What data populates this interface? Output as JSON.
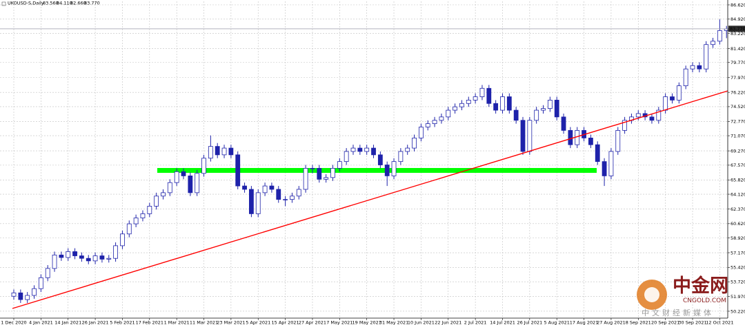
{
  "chart_data": {
    "type": "candlestick",
    "title": "UKOUSD-S,Daily",
    "header_values": [
      {
        "value": 83.56,
        "label": "83.560"
      },
      {
        "value": 84.11,
        "label": "84.110"
      },
      {
        "value": 82.66,
        "label": "82.660"
      },
      {
        "value": 83.77,
        "label": "83.770"
      }
    ],
    "price_line": {
      "value": 83.77,
      "label": "83.770"
    },
    "up_color": "#ffffff",
    "down_color": "#1e22aa",
    "wick_color": "#1e22aa",
    "grid": true,
    "ylim": [
      49.4,
      87.03
    ],
    "yticks": [
      {
        "value": 86.62,
        "label": "86.620"
      },
      {
        "value": 84.92,
        "label": "84.920"
      },
      {
        "value": 83.22,
        "label": "83.220"
      },
      {
        "value": 81.42,
        "label": "81.420"
      },
      {
        "value": 79.77,
        "label": "79.770"
      },
      {
        "value": 77.97,
        "label": "77.970"
      },
      {
        "value": 76.22,
        "label": "76.220"
      },
      {
        "value": 74.52,
        "label": "74.520"
      },
      {
        "value": 72.77,
        "label": "72.770"
      },
      {
        "value": 71.07,
        "label": "71.070"
      },
      {
        "value": 69.27,
        "label": "69.270"
      },
      {
        "value": 67.57,
        "label": "67.570"
      },
      {
        "value": 65.82,
        "label": "65.820"
      },
      {
        "value": 64.12,
        "label": "64.120"
      },
      {
        "value": 62.37,
        "label": "62.370"
      },
      {
        "value": 60.62,
        "label": "60.620"
      },
      {
        "value": 58.92,
        "label": "58.920"
      },
      {
        "value": 57.17,
        "label": "57.170"
      },
      {
        "value": 55.42,
        "label": "55.420"
      },
      {
        "value": 53.72,
        "label": "53.720"
      },
      {
        "value": 51.97,
        "label": "51.970"
      },
      {
        "value": 50.22,
        "label": "50.220"
      }
    ],
    "categories": [
      "1 Dec 2020",
      null,
      null,
      null,
      "4 Jan 2021",
      null,
      null,
      null,
      "14 Jan 2021",
      null,
      null,
      null,
      "26 Jan 2021",
      null,
      null,
      null,
      "5 Feb 2021",
      null,
      null,
      null,
      "17 Feb 2021",
      null,
      null,
      null,
      "1 Mar 2021",
      null,
      null,
      null,
      "11 Mar 2021",
      null,
      null,
      null,
      "23 Mar 2021",
      null,
      null,
      null,
      "5 Apr 2021",
      null,
      null,
      null,
      "15 Apr 2021",
      null,
      null,
      null,
      "27 Apr 2021",
      null,
      null,
      null,
      "7 May 2021",
      null,
      null,
      null,
      "19 May 2021",
      null,
      null,
      null,
      "31 May 2021",
      null,
      null,
      null,
      "10 Jun 2021",
      null,
      null,
      null,
      "22 Jun 2021",
      null,
      null,
      null,
      "2 Jul 2021",
      null,
      null,
      null,
      "14 Jul 2021",
      null,
      null,
      null,
      "26 Jul 2021",
      null,
      null,
      null,
      "5 Aug 2021",
      null,
      null,
      null,
      "17 Aug 2021",
      null,
      null,
      null,
      "27 Aug 2021",
      null,
      null,
      null,
      "8 Sep 2021",
      null,
      null,
      null,
      "20 Sep 2021",
      null,
      null,
      null,
      "30 Sep 2021",
      null,
      null,
      null,
      "12 Oct 2021",
      null
    ],
    "open": [
      52.0,
      52.4,
      51.6,
      52.1,
      52.9,
      54.2,
      55.3,
      56.9,
      56.6,
      57.3,
      56.8,
      56.5,
      56.2,
      56.8,
      56.4,
      56.5,
      58.0,
      59.4,
      60.6,
      61.3,
      61.8,
      62.7,
      63.9,
      64.3,
      65.5,
      66.8,
      66.3,
      64.3,
      66.6,
      68.4,
      69.8,
      68.8,
      69.6,
      68.8,
      65.1,
      64.7,
      61.8,
      64.3,
      65.1,
      64.7,
      63.5,
      63.5,
      63.9,
      64.7,
      67.2,
      67.2,
      65.9,
      66.1,
      67.2,
      68.0,
      69.2,
      69.6,
      69.2,
      69.6,
      68.8,
      67.6,
      66.3,
      68.0,
      69.2,
      69.6,
      70.8,
      72.1,
      72.5,
      72.9,
      73.3,
      74.1,
      74.5,
      74.9,
      75.3,
      75.7,
      76.7,
      74.9,
      74.1,
      75.7,
      74.1,
      72.9,
      69.2,
      72.9,
      74.1,
      74.3,
      75.3,
      73.3,
      71.7,
      70.0,
      71.7,
      70.8,
      70.0,
      68.0,
      66.3,
      69.2,
      71.7,
      72.9,
      73.3,
      73.7,
      73.3,
      72.9,
      74.1,
      75.7,
      75.3,
      77.0,
      79.0,
      79.4,
      79.0,
      81.9,
      82.3,
      83.56
    ],
    "high": [
      52.8,
      52.8,
      52.5,
      53.3,
      54.6,
      55.7,
      57.3,
      57.3,
      57.7,
      57.7,
      57.2,
      56.9,
      57.2,
      57.2,
      56.9,
      58.4,
      59.8,
      61.0,
      61.7,
      62.2,
      63.1,
      64.3,
      64.7,
      65.9,
      67.2,
      67.2,
      66.7,
      67.0,
      68.8,
      71.1,
      70.2,
      70.0,
      70.0,
      69.2,
      65.5,
      65.1,
      64.7,
      65.5,
      65.5,
      65.1,
      63.9,
      64.3,
      65.1,
      67.6,
      67.6,
      67.6,
      66.5,
      67.6,
      68.4,
      69.6,
      70.0,
      70.0,
      70.0,
      70.0,
      69.2,
      68.0,
      68.4,
      69.6,
      70.0,
      71.2,
      72.5,
      72.9,
      73.3,
      73.7,
      74.5,
      74.9,
      75.3,
      75.7,
      76.1,
      77.1,
      77.1,
      75.3,
      76.1,
      76.1,
      74.5,
      73.3,
      73.3,
      74.5,
      74.7,
      75.7,
      75.7,
      73.7,
      72.1,
      72.1,
      72.1,
      71.2,
      70.4,
      68.4,
      69.6,
      72.1,
      73.3,
      73.7,
      74.1,
      74.1,
      73.7,
      74.5,
      76.1,
      76.1,
      77.4,
      79.4,
      79.8,
      79.8,
      82.3,
      82.7,
      84.9,
      84.11
    ],
    "low": [
      51.6,
      51.2,
      51.2,
      51.7,
      52.5,
      53.8,
      54.9,
      56.2,
      56.2,
      56.4,
      56.1,
      55.8,
      55.8,
      56.0,
      56.0,
      56.1,
      57.6,
      59.0,
      60.2,
      60.9,
      61.4,
      62.3,
      63.5,
      63.9,
      65.1,
      65.9,
      63.9,
      63.9,
      66.2,
      68.0,
      68.4,
      68.4,
      68.4,
      64.7,
      64.3,
      61.4,
      61.4,
      63.9,
      64.3,
      63.1,
      62.7,
      63.1,
      63.5,
      64.3,
      66.6,
      65.5,
      65.5,
      65.7,
      66.8,
      67.6,
      68.8,
      68.8,
      68.8,
      68.4,
      67.2,
      65.1,
      65.9,
      67.6,
      68.8,
      69.2,
      70.4,
      71.7,
      72.1,
      72.5,
      72.9,
      73.7,
      74.1,
      74.5,
      74.9,
      75.3,
      74.5,
      73.7,
      73.7,
      73.7,
      72.5,
      68.8,
      68.8,
      72.5,
      73.7,
      73.9,
      72.9,
      71.3,
      69.6,
      69.6,
      70.4,
      69.6,
      67.6,
      65.1,
      65.9,
      68.8,
      71.3,
      72.5,
      72.9,
      72.9,
      72.5,
      72.5,
      73.7,
      74.9,
      74.9,
      76.6,
      78.6,
      78.6,
      78.6,
      81.5,
      81.9,
      82.66
    ],
    "close": [
      52.4,
      51.6,
      52.1,
      52.9,
      54.2,
      55.3,
      56.9,
      56.6,
      57.3,
      56.8,
      56.5,
      56.2,
      56.8,
      56.4,
      56.5,
      58.0,
      59.4,
      60.6,
      61.3,
      61.8,
      62.7,
      63.9,
      64.3,
      65.5,
      66.8,
      66.3,
      64.3,
      66.6,
      68.4,
      69.8,
      68.8,
      69.6,
      68.8,
      65.1,
      64.7,
      61.8,
      64.3,
      65.1,
      64.7,
      63.5,
      63.5,
      63.9,
      64.7,
      67.2,
      67.2,
      65.9,
      66.1,
      67.2,
      68.0,
      69.2,
      69.6,
      69.2,
      69.6,
      68.8,
      67.6,
      66.3,
      68.0,
      69.2,
      69.6,
      70.8,
      72.1,
      72.5,
      72.9,
      73.3,
      74.1,
      74.5,
      74.9,
      75.3,
      75.7,
      76.7,
      74.9,
      74.1,
      75.7,
      74.1,
      72.9,
      69.2,
      72.9,
      74.1,
      74.3,
      75.3,
      73.3,
      71.7,
      70.0,
      71.7,
      70.8,
      70.0,
      68.0,
      66.3,
      69.2,
      71.7,
      72.9,
      73.3,
      73.7,
      73.3,
      72.9,
      74.1,
      75.7,
      75.3,
      77.0,
      79.0,
      79.4,
      79.0,
      81.9,
      82.3,
      83.56,
      83.77
    ]
  },
  "watermark": {
    "brand": "中金网",
    "site": "CNGOLD.COM",
    "slogan": "中文财经新媒体"
  }
}
